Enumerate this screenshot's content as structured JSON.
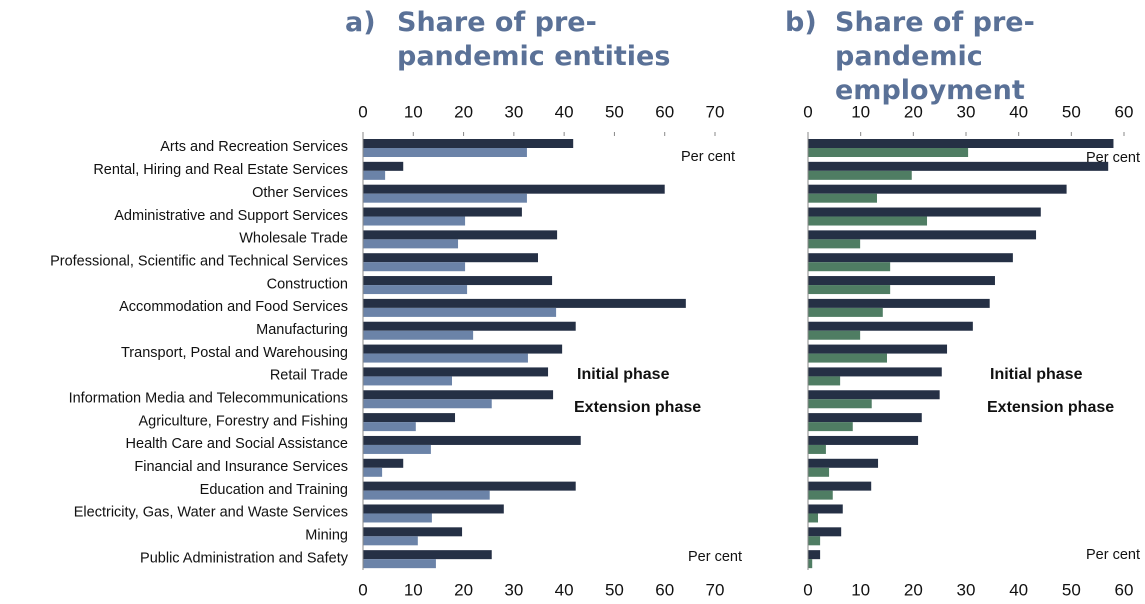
{
  "chart_data": [
    {
      "type": "bar",
      "orientation": "horizontal",
      "label": "a)",
      "title": "Share of pre-pandemic entities",
      "unit": "Per cent",
      "categories": [
        "Arts and Recreation Services",
        "Rental, Hiring and Real Estate Services",
        "Other Services",
        "Administrative and Support Services",
        "Wholesale Trade",
        "Professional, Scientific and Technical Services",
        "Construction",
        "Accommodation and Food Services",
        "Manufacturing",
        "Transport, Postal and Warehousing",
        "Retail Trade",
        "Information Media and Telecommunications",
        "Agriculture, Forestry and Fishing",
        "Health Care and Social Assistance",
        "Financial and Insurance Services",
        "Education and Training",
        "Electricity, Gas, Water and Waste Services",
        "Mining",
        "Public Administration and Safety"
      ],
      "series": [
        {
          "name": "Initial phase",
          "color": "#253045",
          "values": [
            41.8,
            8,
            60,
            31.6,
            38.6,
            34.8,
            37.6,
            64.2,
            42.3,
            39.6,
            36.8,
            37.8,
            18.3,
            43.3,
            8,
            42.3,
            28,
            19.7,
            25.6
          ]
        },
        {
          "name": "Extension phase",
          "color": "#6b83a8",
          "values": [
            32.6,
            4.4,
            32.6,
            20.3,
            18.9,
            20.3,
            20.7,
            38.4,
            21.9,
            32.8,
            17.7,
            25.6,
            10.5,
            13.5,
            3.8,
            25.2,
            13.7,
            10.9,
            14.5
          ]
        }
      ],
      "xlim": [
        0,
        70
      ],
      "xticks": [
        0,
        10,
        20,
        30,
        40,
        50,
        60,
        70
      ]
    },
    {
      "type": "bar",
      "orientation": "horizontal",
      "label": "b)",
      "title": "Share of pre-pandemic employment",
      "unit": "Per cent",
      "series": [
        {
          "name": "Initial phase",
          "color": "#253045",
          "values": [
            58,
            57,
            49.1,
            44.2,
            43.3,
            38.9,
            35.5,
            34.5,
            31.3,
            26.4,
            25.4,
            25,
            21.6,
            20.9,
            13.3,
            12,
            6.6,
            6.3,
            2.3
          ]
        },
        {
          "name": "Extension phase",
          "color": "#4f7d63",
          "values": [
            30.4,
            19.7,
            13.1,
            22.6,
            9.9,
            15.6,
            15.6,
            14.2,
            9.9,
            15,
            6.1,
            12.1,
            8.5,
            3.4,
            4,
            4.7,
            1.9,
            2.3,
            0.8
          ]
        }
      ],
      "xlim": [
        0,
        60
      ],
      "xticks": [
        0,
        10,
        20,
        30,
        40,
        50,
        60
      ]
    }
  ]
}
